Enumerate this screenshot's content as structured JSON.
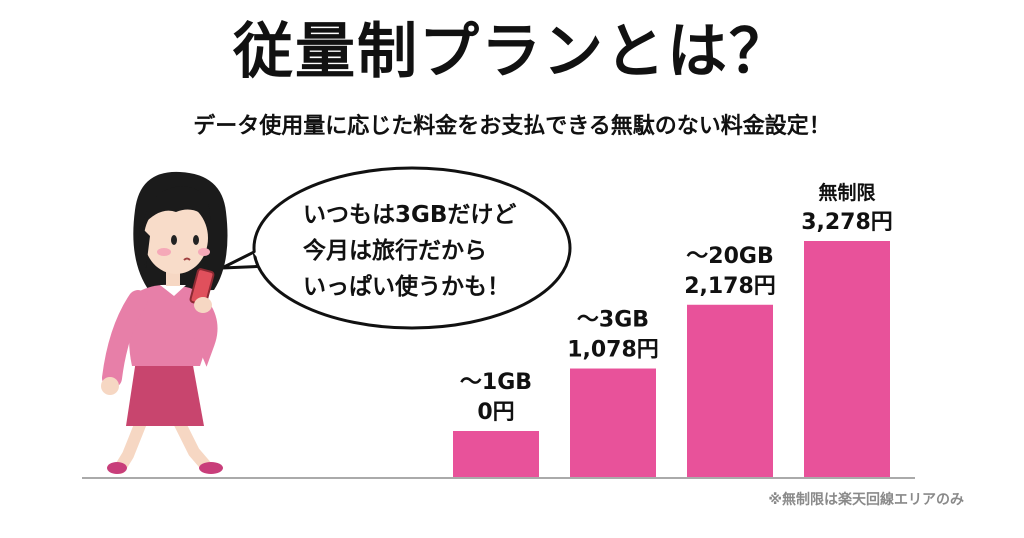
{
  "title": "従量制プランとは？",
  "subtitle": "データ使用量に応じた料金をお支払できる無駄のない料金設定！",
  "speech_bubble": {
    "lines": [
      "いつもは3GBだけど",
      "今月は旅行だから",
      "いっぱい使うかも！"
    ]
  },
  "footnote": "※無制限は楽天回線エリアのみ",
  "colors": {
    "bar": "#e8529a",
    "baseline": "#aaaaaa",
    "footnote": "#8a8a8a"
  },
  "chart_data": {
    "type": "bar",
    "categories": [
      "〜1GB",
      "〜3GB",
      "〜20GB",
      "無制限"
    ],
    "value_labels": [
      "0円",
      "1,078円",
      "2,178円",
      "3,278円"
    ],
    "values": [
      0,
      1078,
      2178,
      3278
    ],
    "title": "",
    "xlabel": "",
    "ylabel": "",
    "grid": false,
    "legend": "none"
  }
}
